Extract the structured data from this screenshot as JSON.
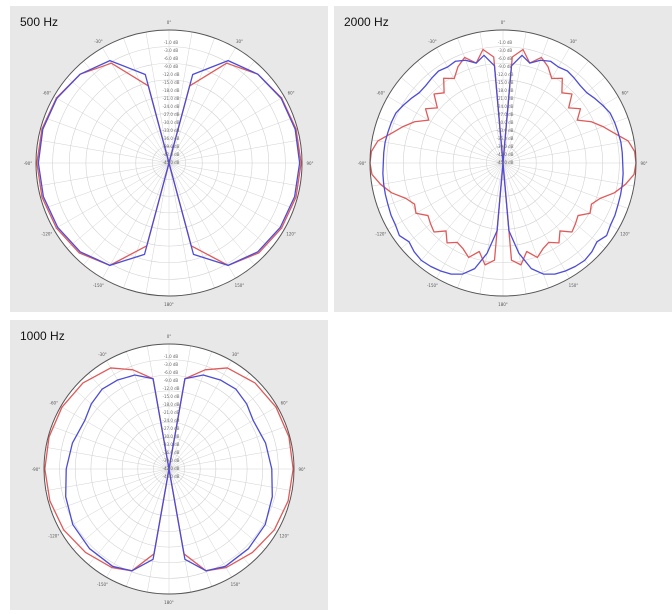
{
  "colors": {
    "panel_bg": "#e8e8e8",
    "plot_bg": "#ffffff",
    "grid": "#d2d2d2",
    "red": "#e05a5a",
    "blue": "#4c4cd8",
    "outer_ring": "#555555"
  },
  "chart_data": [
    {
      "type": "polar",
      "title": "500 Hz",
      "radial_tick_labels": [
        "-1.0 dB",
        "-3.0 dB",
        "-6.0 dB",
        "-9.0 dB",
        "-12.0 dB",
        "-15.0 dB",
        "-18.0 dB",
        "-21.0 dB",
        "-24.0 dB",
        "-27.0 dB",
        "-30.0 dB",
        "-33.0 dB",
        "-36.0 dB",
        "-39.0 dB",
        "-42.0 dB",
        "-45.0 dB"
      ],
      "angle_tick_labels": [
        "30°",
        "60°",
        "90°",
        "120°",
        "150°",
        "180°",
        "-150°",
        "-120°",
        "-90°",
        "-60°",
        "-30°",
        "0°"
      ],
      "series": [
        {
          "color": "#e05a5a",
          "angles_deg": [
            0,
            15,
            30,
            45,
            60,
            75,
            90,
            105,
            120,
            135,
            150,
            165,
            180
          ],
          "level_dB": [
            -45,
            -18,
            -6,
            -2.5,
            -1,
            -0.5,
            -0.3,
            -0.5,
            -1,
            -2,
            -5,
            -16,
            -45
          ]
        },
        {
          "color": "#4c4cd8",
          "angles_deg": [
            0,
            15,
            30,
            45,
            60,
            75,
            90,
            105,
            120,
            135,
            150,
            165,
            180
          ],
          "level_dB": [
            -45,
            -14,
            -5,
            -2.5,
            -1.2,
            -0.8,
            -0.8,
            -1,
            -1.5,
            -2.5,
            -5,
            -13,
            -45
          ]
        }
      ]
    },
    {
      "type": "polar",
      "title": "2000 Hz",
      "radial_tick_labels": [
        "-1.0 dB",
        "-3.0 dB",
        "-6.0 dB",
        "-9.0 dB",
        "-12.0 dB",
        "-15.0 dB",
        "-18.0 dB",
        "-21.0 dB",
        "-24.0 dB",
        "-27.0 dB",
        "-30.0 dB",
        "-33.0 dB",
        "-36.0 dB",
        "-39.0 dB",
        "-42.0 dB",
        "-45.0 dB"
      ],
      "angle_tick_labels": [
        "30°",
        "60°",
        "90°",
        "120°",
        "150°",
        "180°",
        "-150°",
        "-120°",
        "-90°",
        "-60°",
        "-30°",
        "0°"
      ],
      "series": [
        {
          "color": "#e05a5a",
          "angles_deg": [
            0,
            5,
            10,
            15,
            20,
            25,
            30,
            35,
            40,
            45,
            50,
            55,
            60,
            65,
            70,
            75,
            80,
            85,
            90,
            95,
            100,
            105,
            110,
            115,
            120,
            125,
            130,
            135,
            140,
            145,
            150,
            155,
            160,
            165,
            170,
            175,
            180
          ],
          "level_dB": [
            -45,
            -9,
            -6,
            -10,
            -7,
            -9,
            -12,
            -10,
            -14,
            -12,
            -16,
            -13,
            -16,
            -12,
            -9,
            -6,
            -2,
            -0.3,
            0,
            -0.5,
            -3,
            -6,
            -10,
            -12,
            -11,
            -14,
            -13,
            -12,
            -15,
            -12,
            -14,
            -13,
            -11,
            -14,
            -10,
            -12,
            -45
          ]
        },
        {
          "color": "#4c4cd8",
          "angles_deg": [
            0,
            5,
            10,
            15,
            20,
            25,
            30,
            35,
            40,
            45,
            50,
            55,
            60,
            65,
            70,
            75,
            80,
            85,
            90,
            95,
            100,
            105,
            110,
            115,
            120,
            125,
            130,
            135,
            140,
            145,
            150,
            155,
            160,
            165,
            170,
            175,
            180
          ],
          "level_dB": [
            -45,
            -12,
            -8,
            -10,
            -8,
            -7,
            -7.5,
            -7,
            -7.5,
            -8,
            -8,
            -7,
            -6,
            -5,
            -4.8,
            -4.7,
            -4.5,
            -4.5,
            -4.5,
            -4.2,
            -4,
            -3.8,
            -3.6,
            -3.2,
            -3,
            -2.2,
            -3.5,
            -2.5,
            -2,
            -2.3,
            -2.8,
            -3.5,
            -5,
            -8,
            -14,
            -22,
            -45
          ]
        }
      ]
    },
    {
      "type": "polar",
      "title": "1000 Hz",
      "radial_tick_labels": [
        "-1.0 dB",
        "-3.0 dB",
        "-6.0 dB",
        "-9.0 dB",
        "-12.0 dB",
        "-15.0 dB",
        "-18.0 dB",
        "-21.0 dB",
        "-24.0 dB",
        "-27.0 dB",
        "-30.0 dB",
        "-33.0 dB",
        "-36.0 dB",
        "-39.0 dB",
        "-42.0 dB",
        "-45.0 dB"
      ],
      "angle_tick_labels": [
        "30°",
        "60°",
        "90°",
        "120°",
        "150°",
        "180°",
        "-150°",
        "-120°",
        "-90°",
        "-60°",
        "-30°",
        "0°"
      ],
      "series": [
        {
          "color": "#e05a5a",
          "angles_deg": [
            0,
            10,
            20,
            30,
            45,
            60,
            75,
            90,
            105,
            120,
            135,
            150,
            160,
            170,
            180
          ],
          "level_dB": [
            -45,
            -12,
            -7,
            -3,
            -1.2,
            -0.5,
            -0.3,
            -0.3,
            -0.6,
            -1.2,
            -2.5,
            -4,
            -6,
            -14,
            -45
          ]
        },
        {
          "color": "#4c4cd8",
          "angles_deg": [
            0,
            10,
            20,
            30,
            40,
            50,
            60,
            75,
            90,
            105,
            120,
            135,
            150,
            160,
            170,
            180
          ],
          "level_dB": [
            -45,
            -12,
            -9,
            -8,
            -7.5,
            -8.5,
            -10,
            -9,
            -8,
            -6.5,
            -5,
            -4.5,
            -4.5,
            -6,
            -12,
            -45
          ]
        }
      ]
    }
  ]
}
